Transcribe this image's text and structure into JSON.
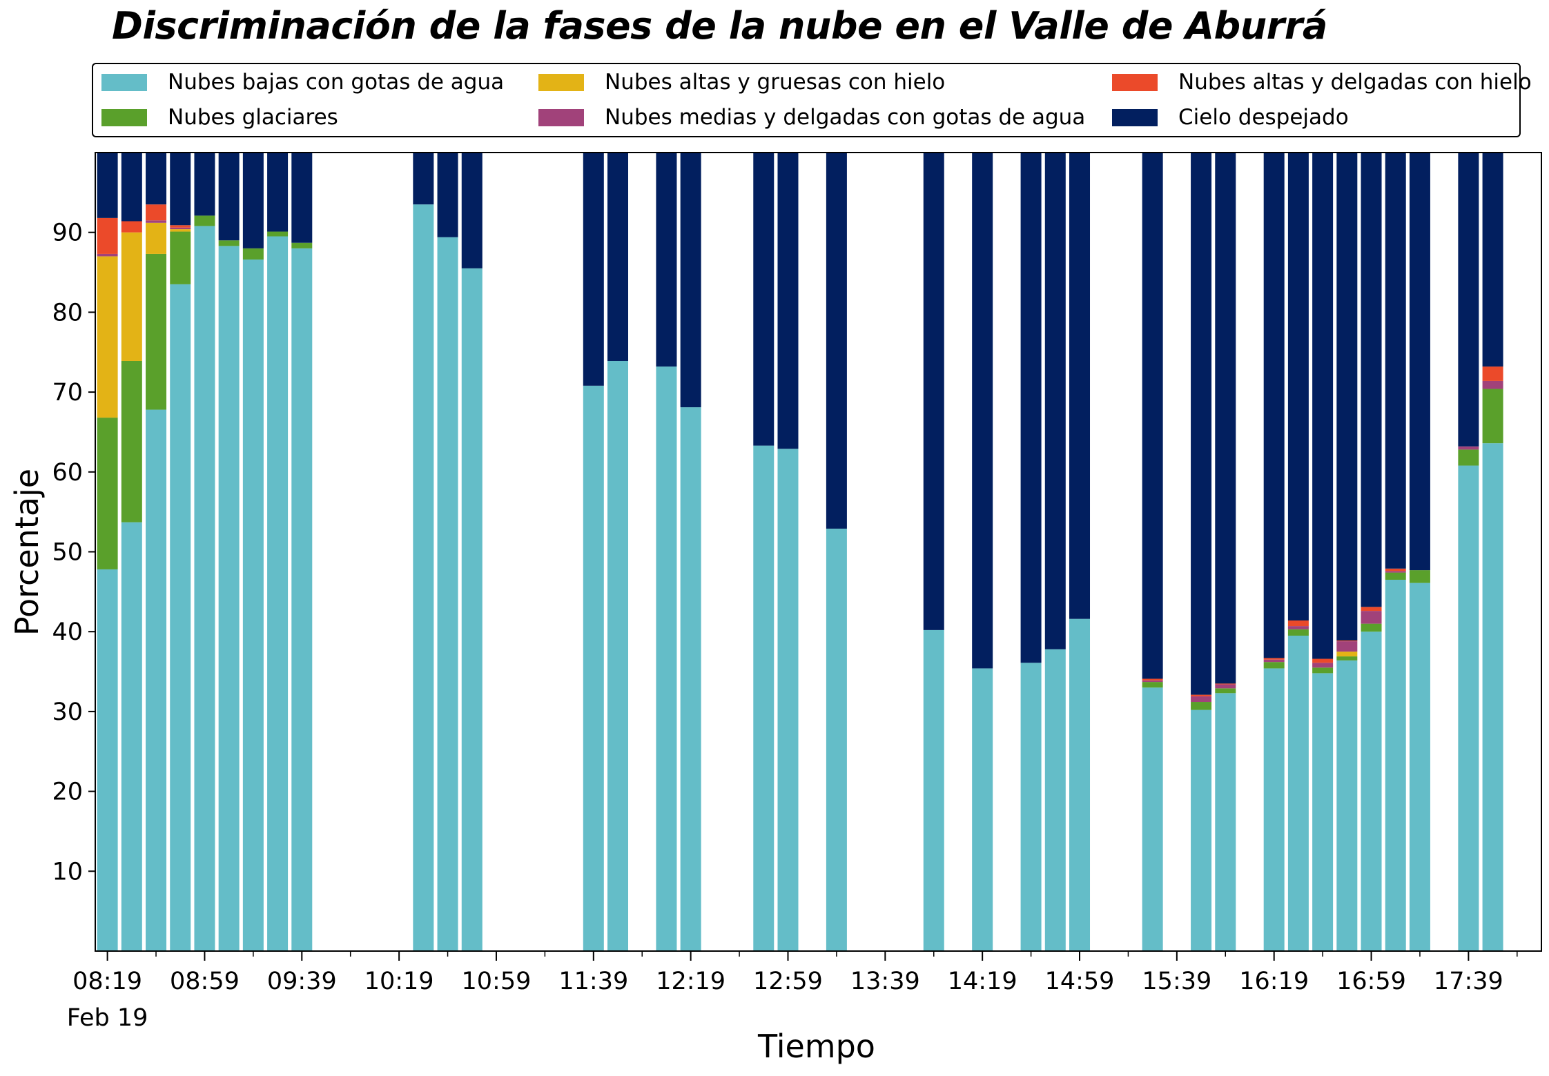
{
  "chart_data": {
    "type": "bar",
    "stacked": true,
    "title": "Discriminación de la fases de la nube en el Valle de Aburrá",
    "xlabel": "Tiempo",
    "ylabel": "Porcentaje",
    "ylim": [
      0,
      100
    ],
    "yticks": [
      10,
      20,
      30,
      40,
      50,
      60,
      70,
      80,
      90
    ],
    "x_start": "08:14",
    "x_end": "18:09",
    "x_major_ticks": [
      "08:19",
      "08:59",
      "09:39",
      "10:19",
      "10:59",
      "11:39",
      "12:19",
      "12:59",
      "13:39",
      "14:19",
      "14:59",
      "15:39",
      "16:19",
      "16:59",
      "17:39"
    ],
    "x_minor_ticks": [
      "08:39",
      "09:19",
      "09:59",
      "10:39",
      "11:19",
      "11:59",
      "12:39",
      "13:19",
      "13:59",
      "14:39",
      "15:19",
      "15:59",
      "16:39",
      "17:19",
      "17:59"
    ],
    "x_date_label": "Feb 19",
    "legend_position": "top",
    "times": [
      "08:19",
      "08:29",
      "08:39",
      "08:49",
      "08:59",
      "09:09",
      "09:19",
      "09:29",
      "09:39",
      "10:29",
      "10:39",
      "10:49",
      "11:39",
      "11:49",
      "12:09",
      "12:19",
      "12:49",
      "12:59",
      "13:19",
      "13:59",
      "14:19",
      "14:39",
      "14:49",
      "14:59",
      "15:29",
      "15:49",
      "15:59",
      "16:19",
      "16:29",
      "16:39",
      "16:49",
      "16:59",
      "17:09",
      "17:19",
      "17:39",
      "17:49"
    ],
    "series": [
      {
        "name": "Nubes bajas con gotas de agua",
        "color": "#64BDC8",
        "values": [
          47.8,
          53.7,
          67.8,
          83.5,
          90.8,
          88.3,
          86.6,
          89.5,
          88.0,
          93.5,
          89.4,
          85.5,
          70.8,
          73.9,
          73.2,
          68.1,
          63.3,
          62.9,
          52.9,
          40.2,
          35.4,
          36.1,
          37.8,
          41.6,
          33.0,
          30.2,
          32.3,
          35.4,
          39.5,
          34.8,
          36.4,
          40.0,
          46.5,
          46.1,
          60.8,
          63.6
        ]
      },
      {
        "name": "Nubes glaciares",
        "color": "#5AA02B",
        "values": [
          19.0,
          20.2,
          19.5,
          6.6,
          1.3,
          0.7,
          1.4,
          0.6,
          0.7,
          0,
          0,
          0,
          0,
          0,
          0,
          0,
          0,
          0,
          0,
          0,
          0,
          0,
          0,
          0,
          0.7,
          1.0,
          0.6,
          0.8,
          0.8,
          0.7,
          0.5,
          1.0,
          0.9,
          1.6,
          2.0,
          6.8
        ]
      },
      {
        "name": "Nubes altas y gruesas con hielo",
        "color": "#E3B316",
        "values": [
          20.2,
          16.1,
          3.9,
          0.3,
          0,
          0,
          0,
          0,
          0,
          0,
          0,
          0,
          0,
          0,
          0,
          0,
          0,
          0,
          0,
          0,
          0,
          0,
          0,
          0,
          0,
          0,
          0,
          0,
          0,
          0,
          0.6,
          0,
          0,
          0,
          0,
          0
        ]
      },
      {
        "name": "Nubes medias y delgadas con gotas de agua",
        "color": "#A1427A",
        "values": [
          0.3,
          0,
          0.3,
          0.2,
          0,
          0,
          0,
          0,
          0,
          0,
          0,
          0,
          0,
          0,
          0,
          0,
          0,
          0,
          0,
          0,
          0,
          0,
          0,
          0,
          0.2,
          0.7,
          0.5,
          0.3,
          0.4,
          0.6,
          1.3,
          1.6,
          0.2,
          0,
          0.4,
          1.0
        ]
      },
      {
        "name": "Nubes altas y delgadas con hielo",
        "color": "#EB4A2A",
        "values": [
          4.5,
          1.4,
          2.0,
          0.3,
          0,
          0,
          0,
          0,
          0,
          0,
          0,
          0,
          0,
          0,
          0,
          0,
          0,
          0,
          0,
          0,
          0,
          0,
          0,
          0,
          0.2,
          0.2,
          0.1,
          0.2,
          0.7,
          0.5,
          0.1,
          0.5,
          0.3,
          0,
          0,
          1.8
        ]
      },
      {
        "name": "Cielo despejado",
        "color": "#021F5F",
        "values": [
          8.2,
          8.6,
          6.5,
          9.2,
          7.9,
          11.0,
          12.0,
          9.9,
          11.3,
          6.5,
          10.6,
          14.5,
          29.2,
          26.1,
          26.8,
          31.9,
          36.7,
          37.1,
          47.1,
          59.8,
          64.6,
          63.9,
          62.2,
          58.4,
          65.9,
          67.9,
          66.5,
          63.3,
          58.6,
          63.4,
          61.1,
          56.9,
          52.1,
          52.3,
          36.8,
          26.8
        ]
      }
    ]
  }
}
